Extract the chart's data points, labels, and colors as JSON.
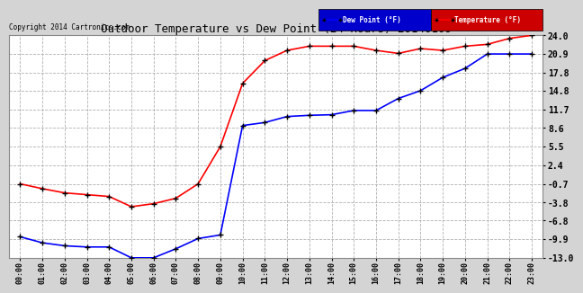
{
  "title": "Outdoor Temperature vs Dew Point (24 Hours) 20140109",
  "copyright": "Copyright 2014 Cartronics.com",
  "x_labels": [
    "00:00",
    "01:00",
    "02:00",
    "03:00",
    "04:00",
    "05:00",
    "06:00",
    "07:00",
    "08:00",
    "09:00",
    "10:00",
    "11:00",
    "12:00",
    "13:00",
    "14:00",
    "15:00",
    "16:00",
    "17:00",
    "18:00",
    "19:00",
    "20:00",
    "21:00",
    "22:00",
    "23:00"
  ],
  "y_ticks": [
    24.0,
    20.9,
    17.8,
    14.8,
    11.7,
    8.6,
    5.5,
    2.4,
    -0.7,
    -3.8,
    -6.8,
    -9.9,
    -13.0
  ],
  "ylim": [
    -13.0,
    24.0
  ],
  "temperature": [
    -0.7,
    -1.5,
    -2.2,
    -2.5,
    -2.8,
    -4.5,
    -4.0,
    -3.1,
    -0.7,
    5.5,
    16.0,
    19.8,
    21.5,
    22.2,
    22.2,
    22.2,
    21.5,
    21.0,
    21.8,
    21.5,
    22.2,
    22.5,
    23.5,
    24.0
  ],
  "dewpoint": [
    -9.5,
    -10.5,
    -11.0,
    -11.2,
    -11.2,
    -13.0,
    -13.0,
    -11.5,
    -9.8,
    -9.2,
    9.0,
    9.5,
    10.5,
    10.7,
    10.8,
    11.5,
    11.5,
    13.5,
    14.8,
    17.0,
    18.5,
    20.9,
    20.9,
    20.9
  ],
  "temp_color": "#ff0000",
  "dew_color": "#0000ff",
  "bg_color": "#d4d4d4",
  "plot_bg_color": "#ffffff",
  "grid_color": "#b0b0b0",
  "legend_temp_bg": "#cc0000",
  "legend_dew_bg": "#0000cc",
  "legend_text_color": "#ffffff",
  "marker": "+",
  "marker_color": "#000000",
  "marker_size": 4,
  "linewidth": 1.2
}
